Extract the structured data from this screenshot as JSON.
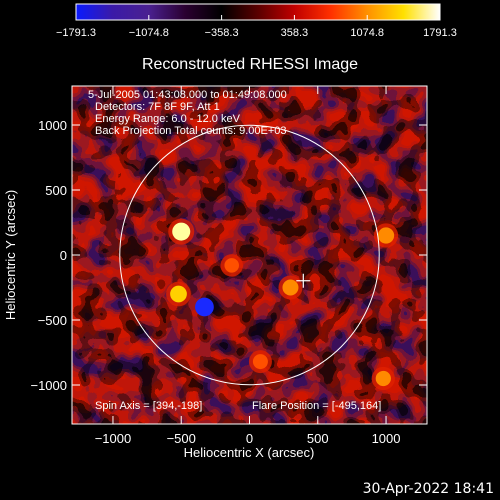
{
  "chart_data": {
    "type": "heatmap",
    "title": "Reconstructed RHESSI Image",
    "xlabel": "Heliocentric X (arcsec)",
    "ylabel": "Heliocentric Y (arcsec)",
    "xlim": [
      -1300,
      1300
    ],
    "ylim": [
      -1300,
      1300
    ],
    "xticks": [
      -1000,
      -500,
      0,
      500,
      1000
    ],
    "yticks": [
      -1000,
      -500,
      0,
      500,
      1000
    ],
    "xtick_labels": [
      "−1000",
      "−500",
      "0",
      "500",
      "1000"
    ],
    "ytick_labels": [
      "−1000",
      "−500",
      "0",
      "500",
      "1000"
    ],
    "colorbar": {
      "min": -1791.3,
      "max": 1791.3,
      "ticks": [
        -1791.3,
        -1074.8,
        -358.3,
        358.3,
        1074.8,
        1791.3
      ],
      "tick_labels": [
        "−1791.3",
        "−1074.8",
        "−358.3",
        "358.3",
        "1074.8",
        "1791.3"
      ],
      "colormap": [
        "#0a1aff",
        "#3a1aa8",
        "#4a2090",
        "#2a0030",
        "#000000",
        "#5a0000",
        "#c00000",
        "#ff3000",
        "#ff9000",
        "#ffe000",
        "#ffffff"
      ]
    },
    "annotations": [
      "5-Jul-2005 01:43:08.000 to 01:49:08.000",
      "Detectors: 7F 8F 9F, Att 1",
      "Energy Range: 6.0 - 12.0 keV",
      "Back Projection    Total counts: 9.00E+03"
    ],
    "spin_axis_label": "Spin Axis = [394,-198]",
    "flare_position_label": "Flare Position = [-495,164]",
    "solar_limb": {
      "center": [
        0,
        0
      ],
      "radius": 950
    },
    "marker_plus": [
      394,
      -198
    ],
    "hot_spots": [
      {
        "x": -500,
        "y": 180,
        "level": 1600
      },
      {
        "x": -520,
        "y": -300,
        "level": 1350
      },
      {
        "x": 300,
        "y": -250,
        "level": 1200
      },
      {
        "x": -130,
        "y": -80,
        "level": 900
      },
      {
        "x": 1000,
        "y": 150,
        "level": 1250
      },
      {
        "x": -330,
        "y": -400,
        "level": -1750
      },
      {
        "x": 80,
        "y": -820,
        "level": 1000
      },
      {
        "x": 980,
        "y": -950,
        "level": 1050
      }
    ]
  },
  "footer": {
    "timestamp": "30-Apr-2022 18:41"
  }
}
